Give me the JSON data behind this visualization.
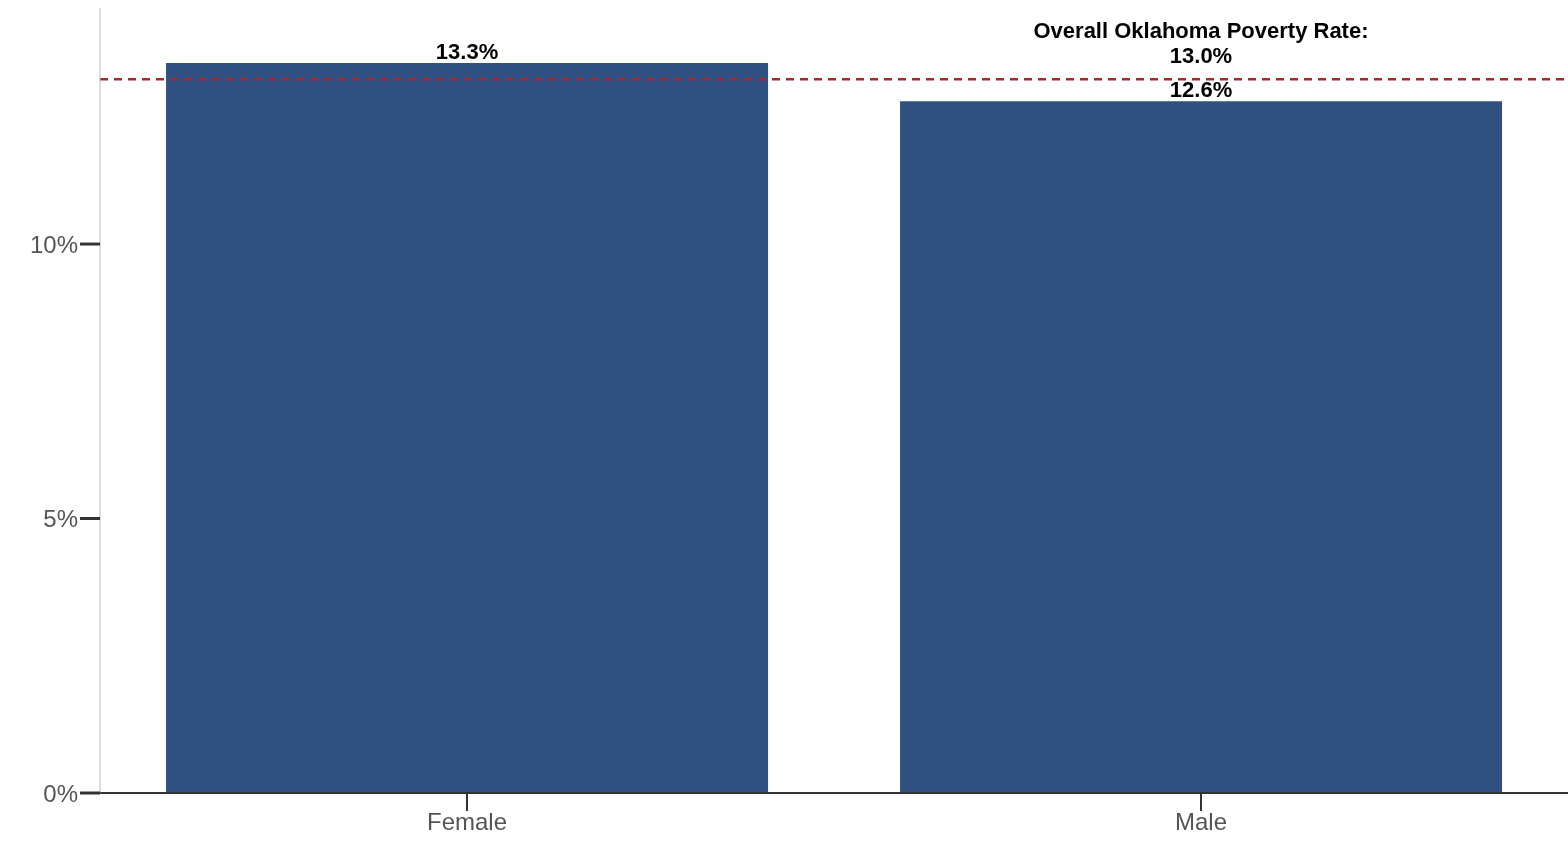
{
  "chart_data": {
    "type": "bar",
    "categories": [
      "Female",
      "Male"
    ],
    "values": [
      13.3,
      12.6
    ],
    "color": "#2f5080",
    "value_labels": [
      "13.3%",
      "12.6%"
    ],
    "ylim": [
      0,
      14.3
    ],
    "yticks": [
      {
        "value": 0,
        "label": "0%"
      },
      {
        "value": 5,
        "label": "5%"
      },
      {
        "value": 10,
        "label": "10%"
      }
    ],
    "ref_lines": [
      {
        "axis": "y",
        "value": 13.0,
        "label": "Overall Oklahoma Poverty Rate:\n13.0%",
        "color": "#a52a2a",
        "line_style": "dashed"
      }
    ],
    "grid": false,
    "legend": false
  }
}
